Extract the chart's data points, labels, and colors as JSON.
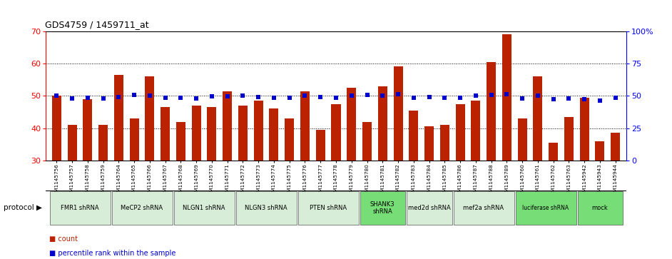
{
  "title": "GDS4759 / 1459711_at",
  "samples": [
    "GSM1145756",
    "GSM1145757",
    "GSM1145758",
    "GSM1145759",
    "GSM1145764",
    "GSM1145765",
    "GSM1145766",
    "GSM1145767",
    "GSM1145768",
    "GSM1145769",
    "GSM1145770",
    "GSM1145771",
    "GSM1145772",
    "GSM1145773",
    "GSM1145774",
    "GSM1145775",
    "GSM1145776",
    "GSM1145777",
    "GSM1145778",
    "GSM1145779",
    "GSM1145780",
    "GSM1145781",
    "GSM1145782",
    "GSM1145783",
    "GSM1145784",
    "GSM1145785",
    "GSM1145786",
    "GSM1145787",
    "GSM1145788",
    "GSM1145789",
    "GSM1145760",
    "GSM1145761",
    "GSM1145762",
    "GSM1145763",
    "GSM1145942",
    "GSM1145943",
    "GSM1145944"
  ],
  "bar_values": [
    50.0,
    41.0,
    49.0,
    41.0,
    56.5,
    43.0,
    56.0,
    46.5,
    42.0,
    47.0,
    46.5,
    51.5,
    47.0,
    48.5,
    46.0,
    43.0,
    51.5,
    39.5,
    47.5,
    52.5,
    42.0,
    53.0,
    59.0,
    45.5,
    40.5,
    41.0,
    47.5,
    48.5,
    60.5,
    69.0,
    43.0,
    56.0,
    35.5,
    43.5,
    49.5,
    36.0,
    38.5
  ],
  "percentile_values": [
    50.0,
    48.0,
    48.5,
    48.0,
    49.0,
    50.5,
    50.0,
    48.5,
    48.5,
    48.0,
    49.5,
    49.5,
    50.0,
    49.0,
    48.5,
    48.5,
    50.0,
    49.0,
    48.5,
    50.0,
    50.5,
    50.0,
    51.0,
    48.5,
    49.0,
    48.5,
    48.5,
    50.0,
    50.5,
    51.5,
    48.0,
    50.0,
    47.5,
    48.0,
    47.5,
    46.5,
    48.5
  ],
  "protocols": [
    {
      "label": "FMR1 shRNA",
      "start": 0,
      "end": 3,
      "color": "#d8edd8"
    },
    {
      "label": "MeCP2 shRNA",
      "start": 4,
      "end": 7,
      "color": "#d8edd8"
    },
    {
      "label": "NLGN1 shRNA",
      "start": 8,
      "end": 11,
      "color": "#d8edd8"
    },
    {
      "label": "NLGN3 shRNA",
      "start": 12,
      "end": 15,
      "color": "#d8edd8"
    },
    {
      "label": "PTEN shRNA",
      "start": 16,
      "end": 19,
      "color": "#d8edd8"
    },
    {
      "label": "SHANK3\nshRNA",
      "start": 20,
      "end": 22,
      "color": "#77dd77"
    },
    {
      "label": "med2d shRNA",
      "start": 23,
      "end": 25,
      "color": "#d8edd8"
    },
    {
      "label": "mef2a shRNA",
      "start": 26,
      "end": 29,
      "color": "#d8edd8"
    },
    {
      "label": "luciferase shRNA",
      "start": 30,
      "end": 33,
      "color": "#77dd77"
    },
    {
      "label": "mock",
      "start": 34,
      "end": 36,
      "color": "#77dd77"
    }
  ],
  "ylim_left": [
    30,
    70
  ],
  "ylim_right": [
    0,
    100
  ],
  "bar_color": "#bb2200",
  "dot_color": "#0000cc",
  "yticks_left": [
    30,
    40,
    50,
    60,
    70
  ],
  "yticks_right": [
    0,
    25,
    50,
    75,
    100
  ],
  "ytick_labels_right": [
    "0",
    "25",
    "50",
    "75",
    "100%"
  ],
  "background_color": "#ffffff",
  "grid_lines": [
    40,
    50,
    60
  ],
  "xtick_bg": "#d8d8d8"
}
